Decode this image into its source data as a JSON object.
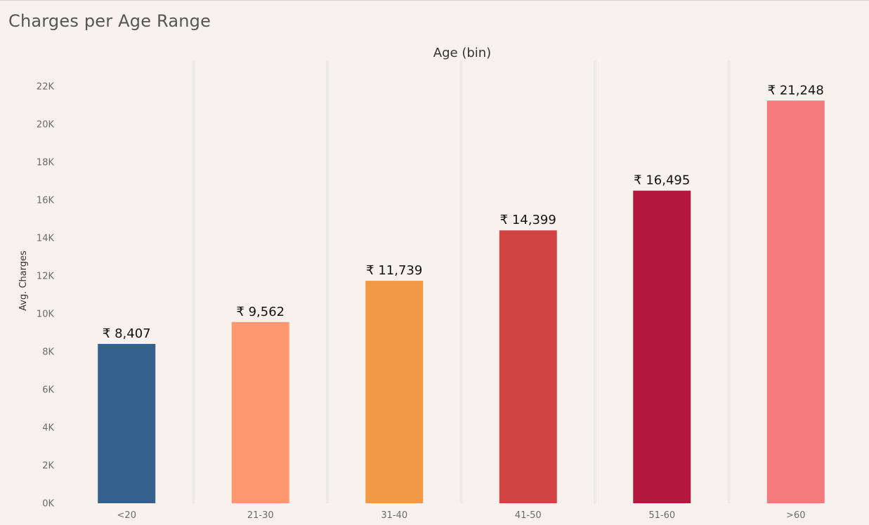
{
  "chart_data": {
    "type": "bar",
    "title": "Charges per Age Range",
    "xlabel": "Age (bin)",
    "ylabel": "Avg. Charges",
    "categories": [
      "<20",
      "21-30",
      "31-40",
      "41-50",
      "51-60",
      ">60"
    ],
    "values": [
      8407,
      9562,
      11739,
      14399,
      16495,
      21248
    ],
    "value_labels": [
      "₹ 8,407",
      "₹ 9,562",
      "₹ 11,739",
      "₹ 14,399",
      "₹ 16,495",
      "₹ 21,248"
    ],
    "colors": [
      "#34618e",
      "#ff9770",
      "#f09a47",
      "#d04444",
      "#b5183f",
      "#f47a7c"
    ],
    "ylim": [
      0,
      22000
    ],
    "yticks": [
      0,
      2000,
      4000,
      6000,
      8000,
      10000,
      12000,
      14000,
      16000,
      18000,
      20000,
      22000
    ],
    "ytick_labels": [
      "0K",
      "2K",
      "4K",
      "6K",
      "8K",
      "10K",
      "12K",
      "14K",
      "16K",
      "18K",
      "20K",
      "22K"
    ],
    "grid": false,
    "legend": "none"
  }
}
